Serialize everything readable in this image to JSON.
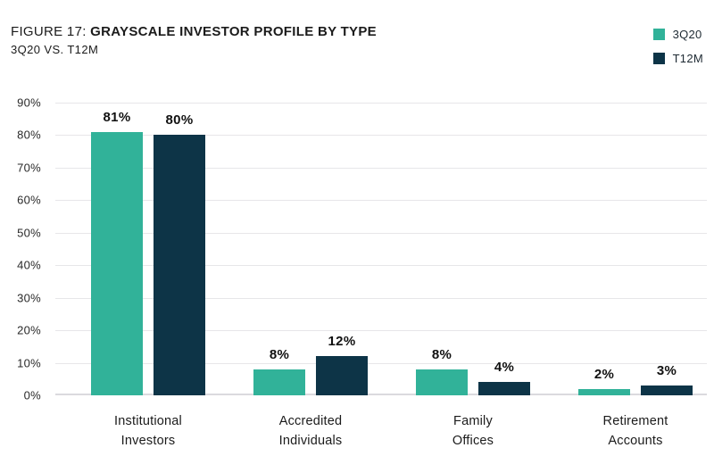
{
  "figure": {
    "label": "FIGURE 17:",
    "title": "GRAYSCALE INVESTOR PROFILE BY TYPE",
    "subtitle": "3Q20 VS. T12M"
  },
  "chart_data": {
    "type": "bar",
    "title": "FIGURE 17: GRAYSCALE INVESTOR PROFILE BY TYPE",
    "subtitle": "3Q20 VS. T12M",
    "categories": [
      "Institutional\nInvestors",
      "Accredited\nIndividuals",
      "Family\nOffices",
      "Retirement\nAccounts"
    ],
    "series": [
      {
        "name": "3Q20",
        "color": "#31B299",
        "values": [
          81,
          8,
          8,
          2
        ]
      },
      {
        "name": "T12M",
        "color": "#0D3447",
        "values": [
          80,
          12,
          4,
          3
        ]
      }
    ],
    "value_label_suffix": "%",
    "yticks": [
      "90%",
      "80%",
      "70%",
      "60%",
      "50%",
      "40%",
      "30%",
      "20%",
      "10%",
      "0%"
    ],
    "ylim": [
      0,
      90
    ],
    "grid": "horizontal",
    "legend_position": "top-right"
  },
  "colors": {
    "teal": "#31B299",
    "navy": "#0D3447",
    "gridline": "#E7E6E9",
    "baseline": "#DBDADE",
    "text": "#1B1B1B",
    "background": "#FFFFFF"
  }
}
